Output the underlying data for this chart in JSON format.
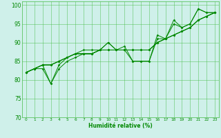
{
  "title": "",
  "xlabel": "Humidité relative (%)",
  "ylabel": "",
  "xlim": [
    -0.5,
    23.5
  ],
  "ylim": [
    70,
    101
  ],
  "yticks": [
    70,
    75,
    80,
    85,
    90,
    95,
    100
  ],
  "xticks": [
    0,
    1,
    2,
    3,
    4,
    5,
    6,
    7,
    8,
    9,
    10,
    11,
    12,
    13,
    14,
    15,
    16,
    17,
    18,
    19,
    20,
    21,
    22,
    23
  ],
  "background_color": "#cff0ea",
  "grid_color": "#44bb44",
  "line_color": "#008800",
  "series": [
    [
      82,
      83,
      84,
      79,
      84,
      86,
      87,
      88,
      88,
      88,
      90,
      88,
      89,
      85,
      85,
      85,
      92,
      91,
      96,
      94,
      95,
      99,
      98,
      98
    ],
    [
      82,
      83,
      84,
      84,
      85,
      86,
      87,
      87,
      87,
      88,
      88,
      88,
      88,
      88,
      88,
      88,
      90,
      91,
      92,
      93,
      94,
      96,
      97,
      98
    ],
    [
      82,
      83,
      84,
      84,
      85,
      86,
      87,
      87,
      87,
      88,
      88,
      88,
      88,
      88,
      88,
      88,
      90,
      91,
      92,
      93,
      94,
      96,
      97,
      98
    ],
    [
      82,
      83,
      84,
      84,
      85,
      86,
      87,
      87,
      87,
      88,
      88,
      88,
      88,
      88,
      88,
      88,
      90,
      91,
      92,
      93,
      94,
      96,
      97,
      98
    ],
    [
      82,
      83,
      83,
      79,
      83,
      85,
      86,
      87,
      87,
      88,
      90,
      88,
      88,
      85,
      85,
      85,
      91,
      91,
      95,
      94,
      95,
      99,
      98,
      98
    ]
  ]
}
